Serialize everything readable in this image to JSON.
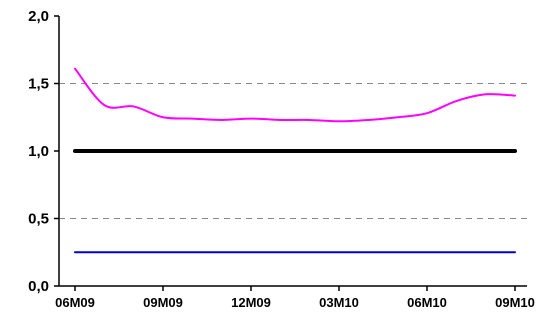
{
  "chart_data": {
    "type": "line",
    "title": "",
    "xlabel": "",
    "ylabel": "",
    "ylim": [
      0,
      2
    ],
    "yticks": [
      0,
      0.5,
      1.0,
      1.5,
      2.0
    ],
    "ytick_labels": [
      "0,0",
      "0,5",
      "1,0",
      "1,5",
      "2,0"
    ],
    "gridlines_y": [
      0.5,
      1.5
    ],
    "grid_style": "dashed",
    "x_categories": [
      "06M09",
      "09M09",
      "12M09",
      "03M10",
      "06M10",
      "09M10"
    ],
    "x_range_months": [
      "2009-06",
      "2010-09"
    ],
    "x": [
      "2009-06",
      "2009-07",
      "2009-08",
      "2009-09",
      "2009-10",
      "2009-11",
      "2009-12",
      "2010-01",
      "2010-02",
      "2010-03",
      "2010-04",
      "2010-05",
      "2010-06",
      "2010-07",
      "2010-08",
      "2010-09"
    ],
    "series": [
      {
        "color": "#ff00ff",
        "line_width": 2,
        "values": [
          1.61,
          1.34,
          1.33,
          1.25,
          1.24,
          1.23,
          1.24,
          1.23,
          1.23,
          1.22,
          1.23,
          1.25,
          1.28,
          1.37,
          1.42,
          1.41
        ]
      },
      {
        "color": "#000000",
        "line_width": 4,
        "values": [
          1.0,
          1.0,
          1.0,
          1.0,
          1.0,
          1.0,
          1.0,
          1.0,
          1.0,
          1.0,
          1.0,
          1.0,
          1.0,
          1.0,
          1.0,
          1.0
        ]
      },
      {
        "color": "#0000cc",
        "line_width": 2,
        "values": [
          0.25,
          0.25,
          0.25,
          0.25,
          0.25,
          0.25,
          0.25,
          0.25,
          0.25,
          0.25,
          0.25,
          0.25,
          0.25,
          0.25,
          0.25,
          0.25
        ]
      }
    ]
  }
}
